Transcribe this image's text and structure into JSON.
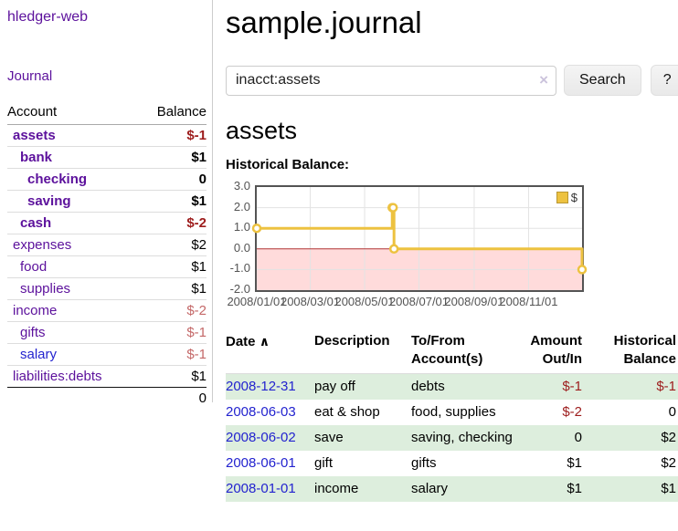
{
  "app": {
    "title": "hledger-web"
  },
  "colors": {
    "purple": "#5c119c",
    "blue": "#2323cf",
    "neg": "#9d1c1c",
    "negsoft": "#c46868",
    "rowgreen": "#ddeedd",
    "gold": "#edc240",
    "axis": "#545454"
  },
  "sidebar": {
    "journal_label": "Journal",
    "accounts_table": {
      "headers": {
        "account": "Account",
        "balance": "Balance"
      },
      "rows": [
        {
          "name": "assets",
          "balance": "$-1",
          "indent": 1,
          "bold": true
        },
        {
          "name": "bank",
          "balance": "$1",
          "indent": 2,
          "bold": true
        },
        {
          "name": "checking",
          "balance": "0",
          "indent": 3,
          "bold": true
        },
        {
          "name": "saving",
          "balance": "$1",
          "indent": 3,
          "bold": true
        },
        {
          "name": "cash",
          "balance": "$-2",
          "indent": 2,
          "bold": true
        },
        {
          "name": "expenses",
          "balance": "$2",
          "indent": 1,
          "bold": false
        },
        {
          "name": "food",
          "balance": "$1",
          "indent": 2,
          "bold": false
        },
        {
          "name": "supplies",
          "balance": "$1",
          "indent": 2,
          "bold": false
        },
        {
          "name": "income",
          "balance": "$-2",
          "indent": 1,
          "bold": false
        },
        {
          "name": "gifts",
          "balance": "$-1",
          "indent": 2,
          "bold": false
        },
        {
          "name": "salary",
          "balance": "$-1",
          "indent": 2,
          "bold": false,
          "blue": true
        },
        {
          "name": "liabilities:debts",
          "balance": "$1",
          "indent": 1,
          "bold": false
        }
      ],
      "total": "0"
    }
  },
  "main": {
    "title": "sample.journal",
    "search": {
      "value": "inacct:assets",
      "clear_icon": "×",
      "button_label": "Search",
      "help_label": "?"
    },
    "account_heading": "assets",
    "chart_label": "Historical Balance:"
  },
  "chart_data": {
    "type": "line",
    "style": "step",
    "title": "Historical Balance",
    "series": [
      {
        "name": "$",
        "color": "#edc240",
        "points": [
          [
            "2008-01-01",
            1
          ],
          [
            "2008-06-01",
            2
          ],
          [
            "2008-06-02",
            2
          ],
          [
            "2008-06-03",
            0
          ],
          [
            "2008-12-31",
            -1
          ]
        ]
      }
    ],
    "x_range": [
      "2008-01-01",
      "2008-12-31"
    ],
    "x_ticks": [
      "2008/01/01",
      "2008/03/01",
      "2008/05/01",
      "2008/07/01",
      "2008/09/01",
      "2008/11/01"
    ],
    "y_ticks": [
      "3.0",
      "2.0",
      "1.0",
      "0.0",
      "-1.0",
      "-2.0"
    ],
    "ylim": [
      -2,
      3
    ],
    "grid": true,
    "legend": {
      "label": "$",
      "position": "top-right"
    },
    "negative_region_color": "#ffdbdb",
    "zero_line_color": "#b03434",
    "grid_color": "#e3e3e3"
  },
  "register_table": {
    "headers": {
      "date": "Date",
      "sort_icon": "∧",
      "description": "Description",
      "accounts": "To/From Account(s)",
      "amount": "Amount Out/In",
      "balance": "Historical Balance"
    },
    "rows": [
      {
        "date": "2008-12-31",
        "description": "pay off",
        "accounts": "debts",
        "amount": "$-1",
        "balance": "$-1",
        "shaded": true
      },
      {
        "date": "2008-06-03",
        "description": "eat & shop",
        "accounts": "food, supplies",
        "amount": "$-2",
        "balance": "0",
        "shaded": false
      },
      {
        "date": "2008-06-02",
        "description": "save",
        "accounts": "saving, checking",
        "amount": "0",
        "balance": "$2",
        "shaded": true
      },
      {
        "date": "2008-06-01",
        "description": "gift",
        "accounts": "gifts",
        "amount": "$1",
        "balance": "$2",
        "shaded": false
      },
      {
        "date": "2008-01-01",
        "description": "income",
        "accounts": "salary",
        "amount": "$1",
        "balance": "$1",
        "shaded": true
      }
    ]
  }
}
